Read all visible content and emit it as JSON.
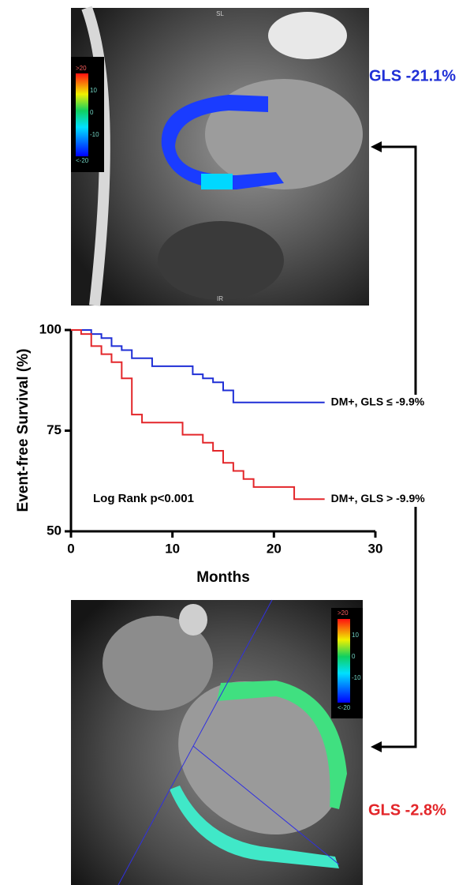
{
  "chart_data": {
    "type": "line",
    "step": true,
    "xlabel": "Months",
    "ylabel": "Event-free Survival (%)",
    "annotation": "Log Rank p<0.001",
    "xlim": [
      0,
      30
    ],
    "ylim": [
      50,
      100
    ],
    "xticks": [
      0,
      10,
      20,
      30
    ],
    "yticks": [
      50,
      75,
      100
    ],
    "series": [
      {
        "name": "DM+, GLS ≤ -9.9%",
        "color": "#1f2fd6",
        "x": [
          0,
          2,
          3,
          4,
          5,
          6,
          8,
          12,
          13,
          14,
          15,
          16,
          25
        ],
        "values": [
          100,
          99,
          98,
          96,
          95,
          93,
          91,
          89,
          88,
          87,
          85,
          82,
          82
        ]
      },
      {
        "name": "DM+, GLS > -9.9%",
        "color": "#e3262a",
        "x": [
          0,
          1,
          2,
          3,
          4,
          5,
          6,
          7,
          11,
          13,
          14,
          15,
          16,
          17,
          18,
          22,
          25
        ],
        "values": [
          100,
          99,
          96,
          94,
          92,
          88,
          79,
          77,
          74,
          72,
          70,
          67,
          65,
          63,
          61,
          58,
          58
        ]
      }
    ]
  },
  "figure": {
    "top_image": {
      "gls_label": "GLS -21.1%",
      "gls_color": "#1f2fd6",
      "top_mark": "SL",
      "bottom_mark": "IR",
      "colorbar_labels": [
        ">20",
        "10",
        "0",
        "-10",
        "<-20"
      ]
    },
    "bottom_image": {
      "gls_label": "GLS -2.8%",
      "gls_color": "#e3262a",
      "colorbar_labels": [
        ">20",
        "10",
        "0",
        "-10",
        "<-20"
      ]
    }
  }
}
